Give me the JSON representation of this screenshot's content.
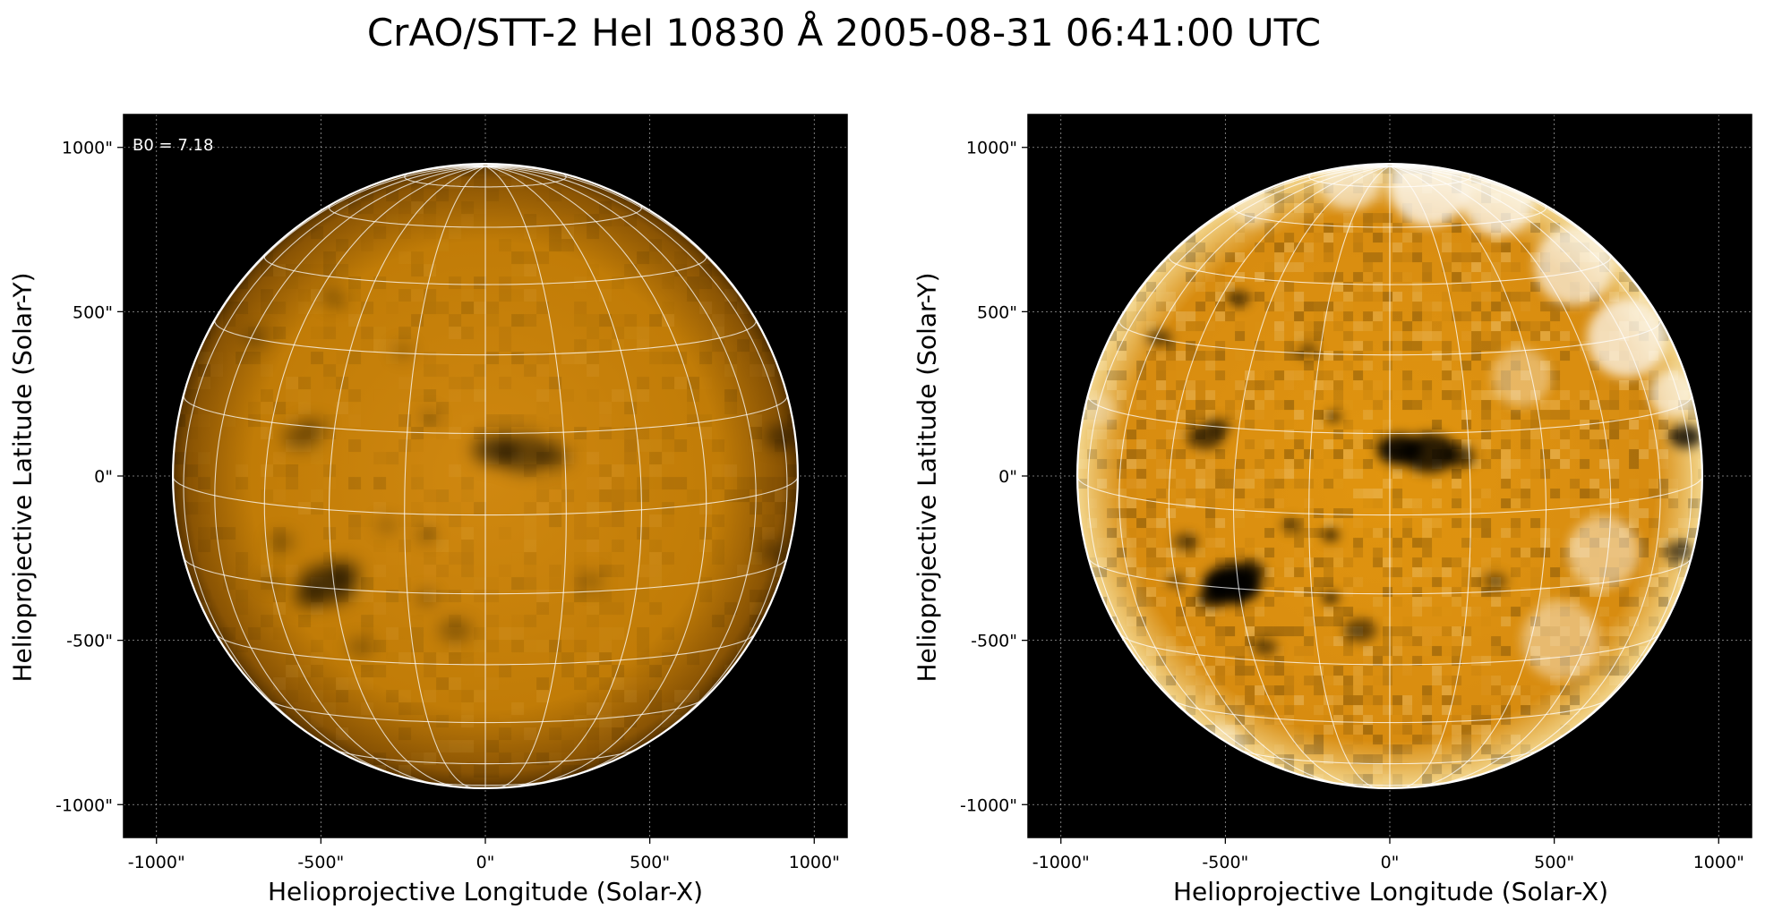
{
  "figure": {
    "title": "CrAO/STT-2 HeI 10830 Å 2005-08-31 06:41:00 UTC",
    "annotation": "B0 = 7.18"
  },
  "axes": {
    "xlabel": "Helioprojective Longitude (Solar-X)",
    "ylabel": "Helioprojective Latitude (Solar-Y)",
    "xticks": [
      "-1000\"",
      "-500\"",
      "0\"",
      "500\"",
      "1000\""
    ],
    "yticks": [
      "1000\"",
      "500\"",
      "0\"",
      "-500\"",
      "-1000\""
    ],
    "tick_values": [
      -1000,
      -500,
      0,
      500,
      1000
    ],
    "extent_arcsec": [
      -1100,
      1100
    ],
    "solar_radius_arcsec": 950,
    "b0_deg": 7.18
  },
  "panels": [
    {
      "name": "left-panel",
      "contrast": "normal",
      "show_annotation": true
    },
    {
      "name": "right-panel",
      "contrast": "enhanced",
      "show_annotation": false
    }
  ],
  "colors": {
    "disk": "#c77f07",
    "disk_dark": "#7a4300",
    "background": "#000000",
    "grid": "#ffffff",
    "frame_grid": "#9a9a9a"
  }
}
